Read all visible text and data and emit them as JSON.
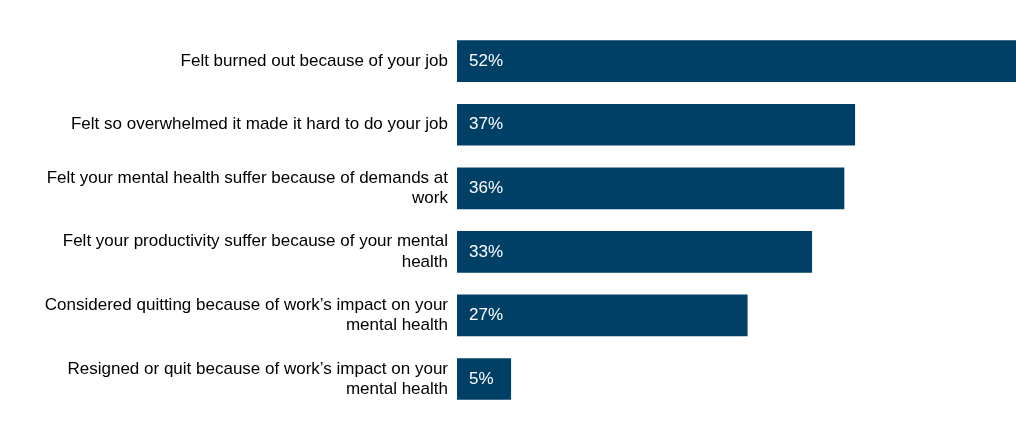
{
  "chart_data": {
    "type": "bar",
    "orientation": "horizontal",
    "categories": [
      "Felt burned out because of your job",
      "Felt so overwhelmed it made it hard to do your job",
      "Felt your mental health suffer because of demands at work",
      "Felt your productivity suffer because of your mental health",
      "Considered quitting because of work’s impact on your mental health",
      "Resigned or quit because of work’s impact on your mental health"
    ],
    "values": [
      52,
      37,
      36,
      33,
      27,
      5
    ],
    "color": "#003f66",
    "data_labels": true,
    "value_labels": [
      "52%",
      "37%",
      "36%",
      "33%",
      "27%",
      "5%"
    ],
    "grid": false,
    "legend": false,
    "tick_labels": "y"
  }
}
